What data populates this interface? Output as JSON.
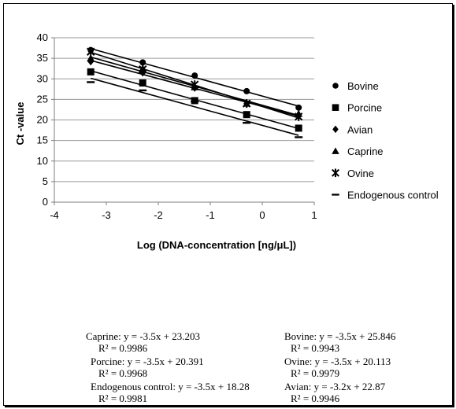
{
  "chart_data": {
    "type": "scatter",
    "xlabel": "Log (DNA-concentration [ng/μL])",
    "ylabel": "Ct -value",
    "xlim": [
      -4,
      1
    ],
    "ylim": [
      0,
      40
    ],
    "xticks": [
      "-4",
      "-3",
      "-2",
      "-1",
      "0",
      "1"
    ],
    "yticks": [
      "0",
      "5",
      "10",
      "15",
      "20",
      "25",
      "30",
      "35",
      "40"
    ],
    "grid": "horizontal",
    "legend_position": "right",
    "x": [
      -3.3,
      -2.3,
      -1.3,
      -0.3,
      0.7
    ],
    "series": [
      {
        "name": "Bovine",
        "marker": "circle",
        "values": [
          37,
          34,
          30.8,
          27,
          23
        ],
        "trendline": {
          "slope": -3.5,
          "intercept": 25.846
        }
      },
      {
        "name": "Porcine",
        "marker": "square",
        "values": [
          31.7,
          29,
          24.7,
          21.3,
          18
        ],
        "trendline": {
          "slope": -3.5,
          "intercept": 20.391
        }
      },
      {
        "name": "Avian",
        "marker": "diamond",
        "values": [
          34.2,
          31.5,
          27.8,
          24,
          21
        ],
        "trendline": {
          "slope": -3.2,
          "intercept": 22.87
        }
      },
      {
        "name": "Caprine",
        "marker": "triangle",
        "values": [
          35,
          32.5,
          28,
          24,
          21.5
        ],
        "trendline": {
          "slope": -3.5,
          "intercept": 23.203
        }
      },
      {
        "name": "Ovine",
        "marker": "star",
        "values": [
          36.6,
          32.3,
          28.6,
          24,
          20.8
        ],
        "trendline": {
          "slope": -3.5,
          "intercept": 20.113
        }
      },
      {
        "name": "Endogenous control",
        "marker": "dash",
        "values": [
          29.2,
          27.2,
          24.5,
          19.3,
          15.8
        ],
        "trendline": {
          "slope": -3.5,
          "intercept": 18.28
        }
      }
    ]
  },
  "equations": [
    {
      "eq": "Caprine: y = -3.5x + 23.203",
      "r2": "R² = 0.9986"
    },
    {
      "eq": "Bovine: y = -3.5x + 25.846",
      "r2": "R² = 0.9943"
    },
    {
      "eq": "Porcine: y = -3.5x + 20.391",
      "r2": "R² = 0.9968"
    },
    {
      "eq": "Ovine: y = -3.5x + 20.113",
      "r2": "R² = 0.9979"
    },
    {
      "eq": "Endogenous control: y = -3.5x + 18.28",
      "r2": "R² = 0.9981"
    },
    {
      "eq": "Avian: y = -3.2x + 22.87",
      "r2": "R² = 0.9946"
    }
  ]
}
